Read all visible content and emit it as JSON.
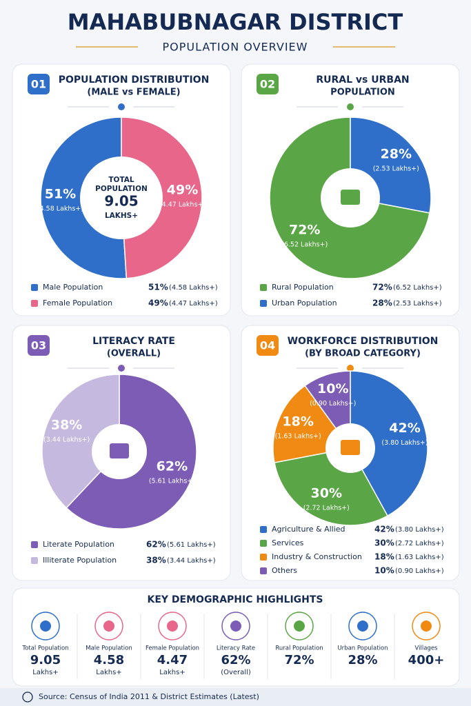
{
  "header": {
    "title": "MAHABUBNAGAR DISTRICT",
    "subtitle": "POPULATION OVERVIEW"
  },
  "chart_data": [
    {
      "type": "pie",
      "badge": "01",
      "title": "POPULATION DISTRIBUTION",
      "subtitle": "(MALE vs FEMALE)",
      "direction": "counterclockwise",
      "categories": [
        "Male Population",
        "Female Population"
      ],
      "values": [
        51,
        49
      ],
      "value_labels": [
        "51%",
        "49%"
      ],
      "details": [
        "(4.58 Lakhs+)",
        "(4.47 Lakhs+)"
      ],
      "colors": [
        "#2f6fca",
        "#e8668a"
      ],
      "badge_color": "#2f6fca",
      "center": [
        "TOTAL",
        "POPULATION",
        "9.05",
        "LAKHS+"
      ]
    },
    {
      "type": "pie",
      "badge": "02",
      "title": "RURAL vs URBAN",
      "subtitle": "POPULATION",
      "direction": "counterclockwise",
      "categories": [
        "Rural Population",
        "Urban Population"
      ],
      "values": [
        72,
        28
      ],
      "value_labels": [
        "72%",
        "28%"
      ],
      "details": [
        "(6.52 Lakhs+)",
        "(2.53 Lakhs+)"
      ],
      "colors": [
        "#5aa545",
        "#2f6fca"
      ],
      "badge_color": "#5aa545"
    },
    {
      "type": "pie",
      "badge": "03",
      "title": "LITERACY RATE",
      "subtitle": "(OVERALL)",
      "direction": "clockwise",
      "categories": [
        "Literate Population",
        "Illiterate Population"
      ],
      "values": [
        62,
        38
      ],
      "value_labels": [
        "62%",
        "38%"
      ],
      "details": [
        "(5.61 Lakhs+)",
        "(3.44 Lakhs+)"
      ],
      "colors": [
        "#7c5cb5",
        "#c6b9e0"
      ],
      "badge_color": "#7c5cb5"
    },
    {
      "type": "pie",
      "badge": "04",
      "title": "WORKFORCE DISTRIBUTION",
      "subtitle": "(BY BROAD CATEGORY)",
      "direction": "clockwise",
      "categories": [
        "Agriculture & Allied",
        "Services",
        "Industry & Construction",
        "Others"
      ],
      "values": [
        42,
        30,
        18,
        10
      ],
      "value_labels": [
        "42%",
        "30%",
        "18%",
        "10%"
      ],
      "details": [
        "(3.80 Lakhs+)",
        "(2.72 Lakhs+)",
        "(1.63 Lakhs+)",
        "(0.90 Lakhs+)"
      ],
      "colors": [
        "#2f6fca",
        "#5aa545",
        "#f08a12",
        "#7c5cb5"
      ],
      "badge_color": "#f08a12"
    }
  ],
  "highlights": {
    "title": "KEY DEMOGRAPHIC HIGHLIGHTS",
    "items": [
      {
        "label": "Total Population",
        "value": "9.05",
        "note": "Lakhs+"
      },
      {
        "label": "Male Population",
        "value": "4.58",
        "note": "Lakhs+"
      },
      {
        "label": "Female Population",
        "value": "4.47",
        "note": "Lakhs+"
      },
      {
        "label": "Literacy Rate",
        "value": "62%",
        "note": "(Overall)"
      },
      {
        "label": "Rural Population",
        "value": "72%"
      },
      {
        "label": "Urban Population",
        "value": "28%"
      },
      {
        "label": "Villages",
        "value": "400+"
      }
    ]
  },
  "source": "Source: Census of India 2011 & District Estimates (Latest)"
}
